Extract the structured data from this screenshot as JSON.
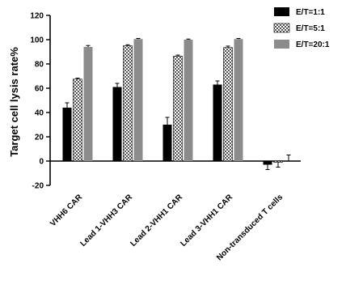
{
  "chart_data": {
    "type": "bar",
    "ylabel": "Target cell lysis rate%",
    "xlabel": "",
    "ylim": [
      -20,
      120
    ],
    "yticks": [
      -20,
      0,
      20,
      40,
      60,
      80,
      100,
      120
    ],
    "grid": false,
    "legend_position": "top-right",
    "categories": [
      "VHH6 CAR",
      "Lead 1-VHH3 CAR",
      "Lead 2-VHH1 CAR",
      "Lead 3-VHH1 CAR",
      "Non-transduced T cells"
    ],
    "series": [
      {
        "name": "E/T=1:1",
        "fill": "solid",
        "color": "#000000",
        "values": [
          44,
          61,
          30,
          63,
          -3
        ],
        "errors": [
          4,
          3,
          6,
          3,
          4
        ]
      },
      {
        "name": "E/T=5:1",
        "fill": "checker",
        "color": "#666666",
        "values": [
          67.5,
          95,
          86.5,
          93.5,
          -1
        ],
        "errors": [
          0.8,
          0.8,
          0.8,
          1.2,
          4
        ]
      },
      {
        "name": "E/T=20:1",
        "fill": "solid",
        "color": "#8c8c8c",
        "values": [
          94,
          100.5,
          100,
          100.5,
          0
        ],
        "errors": [
          1.2,
          0.5,
          0.5,
          0.5,
          5
        ]
      }
    ]
  }
}
